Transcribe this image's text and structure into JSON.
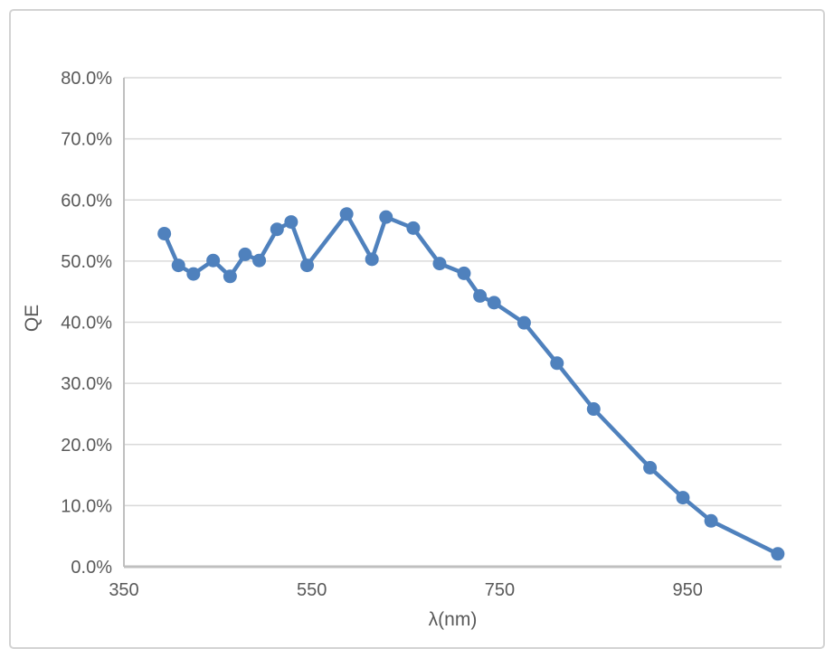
{
  "chart_data": {
    "type": "line",
    "title": "",
    "xlabel": "λ(nm)",
    "ylabel": "QE",
    "legend": "none",
    "grid": "horizontal",
    "xlim": [
      350,
      1050
    ],
    "ylim": [
      0,
      80
    ],
    "x_ticks": [
      350,
      550,
      750,
      950
    ],
    "x_tick_labels": [
      "350",
      "550",
      "750",
      "950"
    ],
    "y_ticks": [
      0,
      10,
      20,
      30,
      40,
      50,
      60,
      70,
      80
    ],
    "y_tick_labels": [
      "0.0%",
      "10.0%",
      "20.0%",
      "30.0%",
      "40.0%",
      "50.0%",
      "60.0%",
      "70.0%",
      "80.0%"
    ],
    "series": [
      {
        "name": "QE",
        "marker": "circle",
        "points": [
          {
            "x": 393,
            "y": 54.5
          },
          {
            "x": 408,
            "y": 49.3
          },
          {
            "x": 424,
            "y": 47.9
          },
          {
            "x": 445,
            "y": 50.1
          },
          {
            "x": 463,
            "y": 47.5
          },
          {
            "x": 479,
            "y": 51.1
          },
          {
            "x": 494,
            "y": 50.1
          },
          {
            "x": 513,
            "y": 55.2
          },
          {
            "x": 528,
            "y": 56.4
          },
          {
            "x": 545,
            "y": 49.3
          },
          {
            "x": 587,
            "y": 57.7
          },
          {
            "x": 614,
            "y": 50.3
          },
          {
            "x": 629,
            "y": 57.2
          },
          {
            "x": 658,
            "y": 55.4
          },
          {
            "x": 686,
            "y": 49.6
          },
          {
            "x": 712,
            "y": 48.0
          },
          {
            "x": 729,
            "y": 44.3
          },
          {
            "x": 744,
            "y": 43.2
          },
          {
            "x": 776,
            "y": 39.9
          },
          {
            "x": 811,
            "y": 33.3
          },
          {
            "x": 850,
            "y": 25.8
          },
          {
            "x": 910,
            "y": 16.2
          },
          {
            "x": 945,
            "y": 11.3
          },
          {
            "x": 975,
            "y": 7.5
          },
          {
            "x": 1046,
            "y": 2.1
          }
        ]
      }
    ],
    "colors": {
      "series": "#4F81BD",
      "gridline": "#D9D9D9",
      "axis_line": "#BFBFBF",
      "tick_label": "#595959",
      "axis_title": "#595959",
      "chart_border": "#D3D3D3",
      "background": "#FFFFFF"
    }
  }
}
